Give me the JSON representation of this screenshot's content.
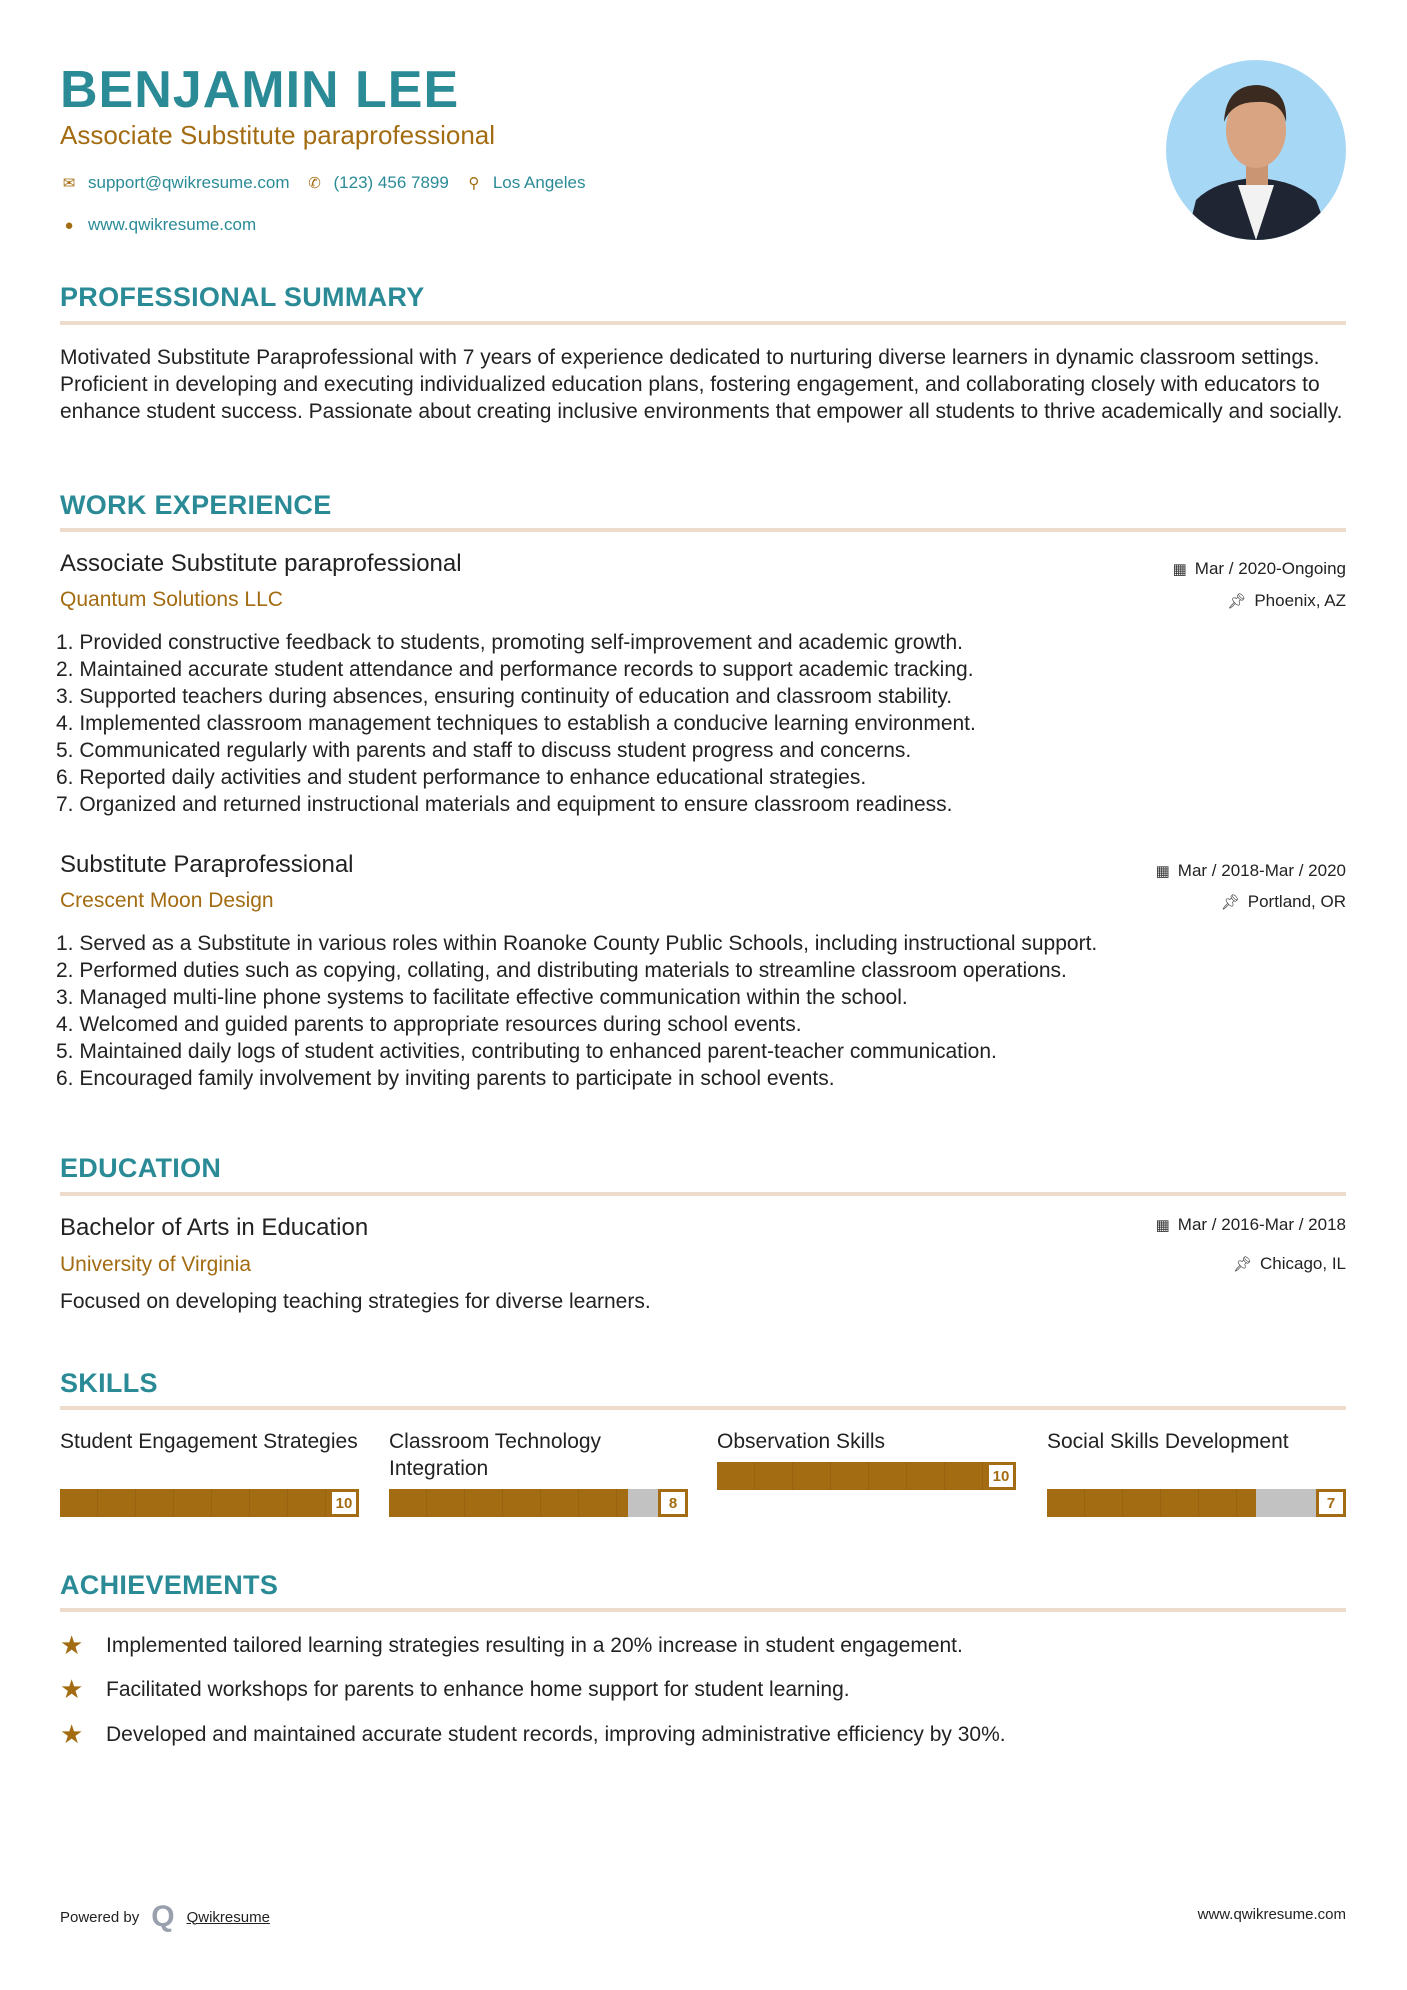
{
  "header": {
    "name": "BENJAMIN LEE",
    "title": "Associate Substitute paraprofessional",
    "email": "support@qwikresume.com",
    "phone": "(123) 456 7899",
    "location": "Los Angeles",
    "website": "www.qwikresume.com"
  },
  "summary": {
    "heading": "PROFESSIONAL SUMMARY",
    "text": "Motivated Substitute Paraprofessional with 7 years of experience dedicated to nurturing diverse learners in dynamic classroom settings. Proficient in developing and executing individualized education plans, fostering engagement, and collaborating closely with educators to enhance student success. Passionate about creating inclusive environments that empower all students to thrive academically and socially."
  },
  "experience": {
    "heading": "WORK EXPERIENCE",
    "jobs": [
      {
        "title": "Associate Substitute paraprofessional",
        "company": "Quantum Solutions LLC",
        "dates": "Mar / 2020-Ongoing",
        "location": "Phoenix, AZ",
        "bullets": [
          "1. Provided constructive feedback to students, promoting self-improvement and academic growth.",
          "2. Maintained accurate student attendance and performance records to support academic tracking.",
          "3. Supported teachers during absences, ensuring continuity of education and classroom stability.",
          "4. Implemented classroom management techniques to establish a conducive learning environment.",
          "5. Communicated regularly with parents and staff to discuss student progress and concerns.",
          "6. Reported daily activities and student performance to enhance educational strategies.",
          "7. Organized and returned instructional materials and equipment to ensure classroom readiness."
        ]
      },
      {
        "title": "Substitute Paraprofessional",
        "company": "Crescent Moon Design",
        "dates": "Mar / 2018-Mar / 2020",
        "location": "Portland, OR",
        "bullets": [
          "1. Served as a Substitute in various roles within Roanoke County Public Schools, including instructional support.",
          "2. Performed duties such as copying, collating, and distributing materials to streamline classroom operations.",
          "3. Managed multi-line phone systems to facilitate effective communication within the school.",
          "4. Welcomed and guided parents to appropriate resources during school events.",
          "5. Maintained daily logs of student activities, contributing to enhanced parent-teacher communication.",
          "6. Encouraged family involvement by inviting parents to participate in school events."
        ]
      }
    ]
  },
  "education": {
    "heading": "EDUCATION",
    "degree": "Bachelor of Arts in Education",
    "school": "University of Virginia",
    "dates": "Mar / 2016-Mar / 2018",
    "location": "Chicago, IL",
    "description": "Focused on developing teaching strategies for diverse learners."
  },
  "skills": {
    "heading": "SKILLS",
    "items": [
      {
        "name": "Student Engagement Strategies",
        "level": 10
      },
      {
        "name": "Classroom Technology Integration",
        "level": 8
      },
      {
        "name": "Observation Skills",
        "level": 10
      },
      {
        "name": "Social Skills Development",
        "level": 7
      }
    ]
  },
  "achievements": {
    "heading": "ACHIEVEMENTS",
    "items": [
      "Implemented tailored learning strategies resulting in a 20% increase in student engagement.",
      "Facilitated workshops for parents to enhance home support for student learning.",
      "Developed and maintained accurate student records, improving administrative efficiency by 30%."
    ]
  },
  "footer": {
    "powered_by": "Powered by",
    "brand": "Qwikresume",
    "website": "www.qwikresume.com"
  },
  "colors": {
    "accent": "#2a8b97",
    "secondary": "#a36c12",
    "rule": "#eddccb"
  }
}
